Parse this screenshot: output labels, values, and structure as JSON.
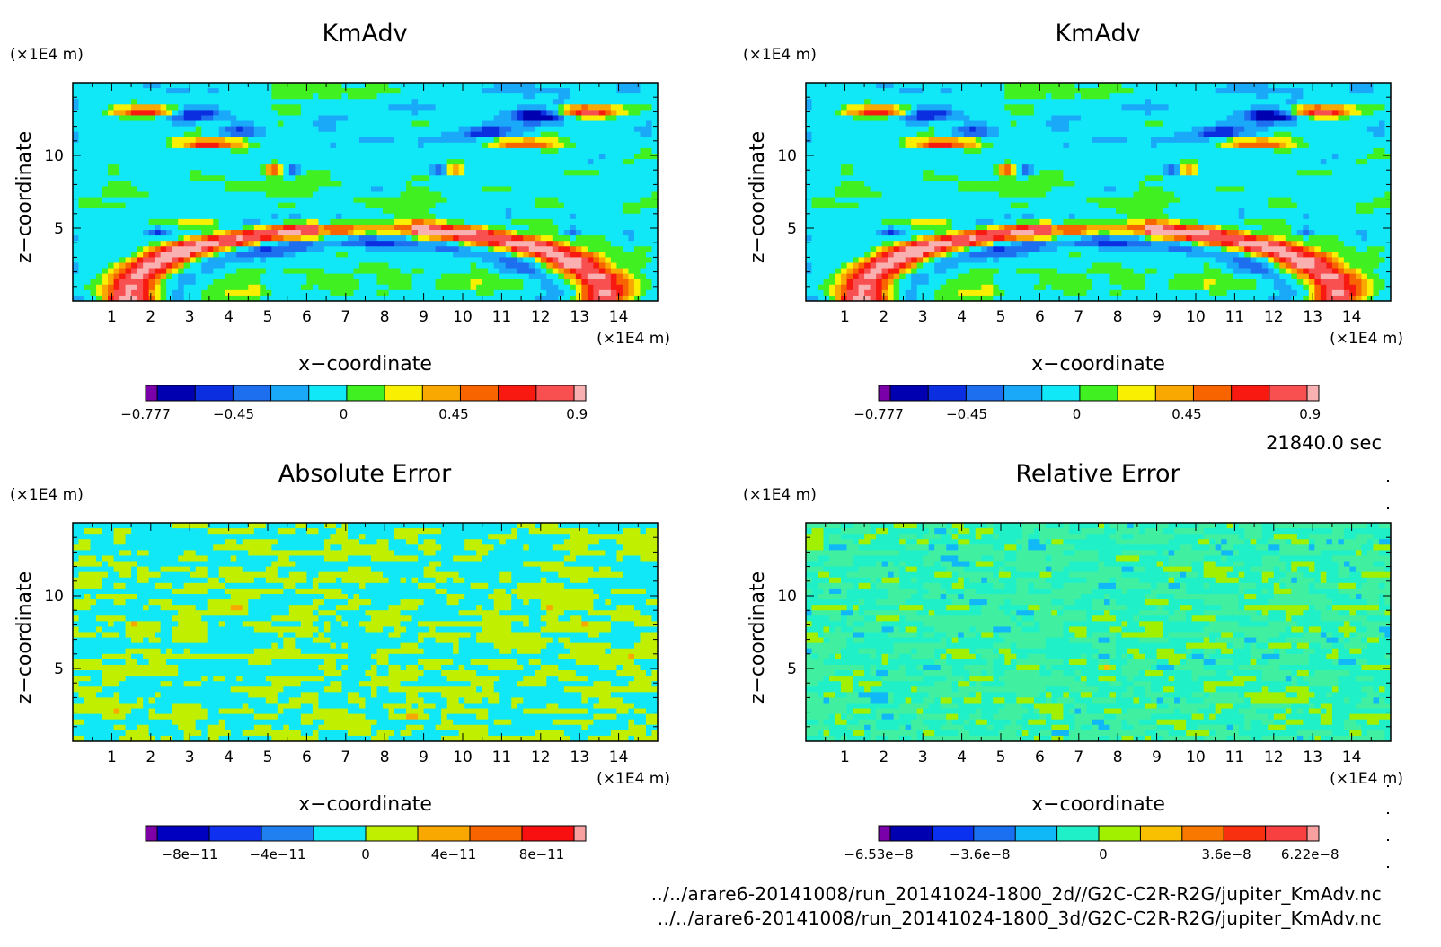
{
  "time_label": "21840.0 sec",
  "files": [
    "../../arare6-20141008/run_20141024-1800_2d//G2C-C2R-R2G/jupiter_KmAdv.nc",
    "../../arare6-20141008/run_20141024-1800_3d/G2C-C2R-R2G/jupiter_KmAdv.nc"
  ],
  "chart_data": [
    {
      "type": "heatmap",
      "title": "KmAdv",
      "xlabel": "x−coordinate",
      "ylabel": "z−coordinate",
      "x_unit": "(×1E4 m)",
      "y_unit": "(×1E4 m)",
      "xlim": [
        0,
        15
      ],
      "ylim": [
        0,
        15
      ],
      "xticks": [
        1,
        2,
        3,
        4,
        5,
        6,
        7,
        8,
        9,
        10,
        11,
        12,
        13,
        14
      ],
      "yticks": [
        5,
        10
      ],
      "colorbar": {
        "levels": 12,
        "colors": [
          "#7a00aa",
          "#0000b0",
          "#0a2ee0",
          "#1e6ef0",
          "#1aa8f8",
          "#10e8f8",
          "#40f020",
          "#f8f000",
          "#f8a800",
          "#f86400",
          "#f81a10",
          "#f85050",
          "#f8b0b0"
        ],
        "tick_labels": [
          "−0.777",
          "−0.45",
          "0",
          "0.45",
          "0.9"
        ],
        "tick_fractions": [
          0,
          0.2,
          0.45,
          0.7,
          0.98
        ]
      }
    },
    {
      "type": "heatmap",
      "title": "KmAdv",
      "xlabel": "x−coordinate",
      "ylabel": "z−coordinate",
      "x_unit": "(×1E4 m)",
      "y_unit": "(×1E4 m)",
      "xlim": [
        0,
        15
      ],
      "ylim": [
        0,
        15
      ],
      "xticks": [
        1,
        2,
        3,
        4,
        5,
        6,
        7,
        8,
        9,
        10,
        11,
        12,
        13,
        14
      ],
      "yticks": [
        5,
        10
      ],
      "colorbar": {
        "levels": 12,
        "colors": [
          "#7a00aa",
          "#0000b0",
          "#0a2ee0",
          "#1e6ef0",
          "#1aa8f8",
          "#10e8f8",
          "#40f020",
          "#f8f000",
          "#f8a800",
          "#f86400",
          "#f81a10",
          "#f85050",
          "#f8b0b0"
        ],
        "tick_labels": [
          "−0.777",
          "−0.45",
          "0",
          "0.45",
          "0.9"
        ],
        "tick_fractions": [
          0,
          0.2,
          0.45,
          0.7,
          0.98
        ]
      }
    },
    {
      "type": "heatmap",
      "title": "Absolute Error",
      "xlabel": "x−coordinate",
      "ylabel": "z−coordinate",
      "x_unit": "(×1E4 m)",
      "y_unit": "(×1E4 m)",
      "xlim": [
        0,
        15
      ],
      "ylim": [
        0,
        15
      ],
      "xticks": [
        1,
        2,
        3,
        4,
        5,
        6,
        7,
        8,
        9,
        10,
        11,
        12,
        13,
        14
      ],
      "yticks": [
        5,
        10
      ],
      "colorbar": {
        "levels": 10,
        "colors": [
          "#8000a8",
          "#0000c0",
          "#1030f0",
          "#2080f0",
          "#10e8f8",
          "#c0f000",
          "#f8a800",
          "#f86400",
          "#f81010",
          "#f8a0a0"
        ],
        "tick_labels": [
          "−8e−11",
          "−4e−11",
          "0",
          "4e−11",
          "8e−11"
        ],
        "tick_fractions": [
          0.1,
          0.3,
          0.5,
          0.7,
          0.9
        ]
      }
    },
    {
      "type": "heatmap",
      "title": "Relative Error",
      "xlabel": "x−coordinate",
      "ylabel": "z−coordinate",
      "x_unit": "(×1E4 m)",
      "y_unit": "(×1E4 m)",
      "xlim": [
        0,
        15
      ],
      "ylim": [
        0,
        15
      ],
      "xticks": [
        1,
        2,
        3,
        4,
        5,
        6,
        7,
        8,
        9,
        10,
        11,
        12,
        13,
        14
      ],
      "yticks": [
        5,
        10
      ],
      "colorbar": {
        "levels": 11,
        "colors": [
          "#7a00aa",
          "#0000b0",
          "#0a30f0",
          "#1a70f0",
          "#10b8f8",
          "#20f0c8",
          "#a0f000",
          "#f8c000",
          "#f87800",
          "#f83010",
          "#f84040",
          "#f8a0a0"
        ],
        "tick_labels": [
          "−6.53e−8",
          "−3.6e−8",
          "0",
          "3.6e−8",
          "6.22e−8"
        ],
        "tick_fractions": [
          0,
          0.23,
          0.51,
          0.79,
          0.98
        ]
      }
    }
  ]
}
